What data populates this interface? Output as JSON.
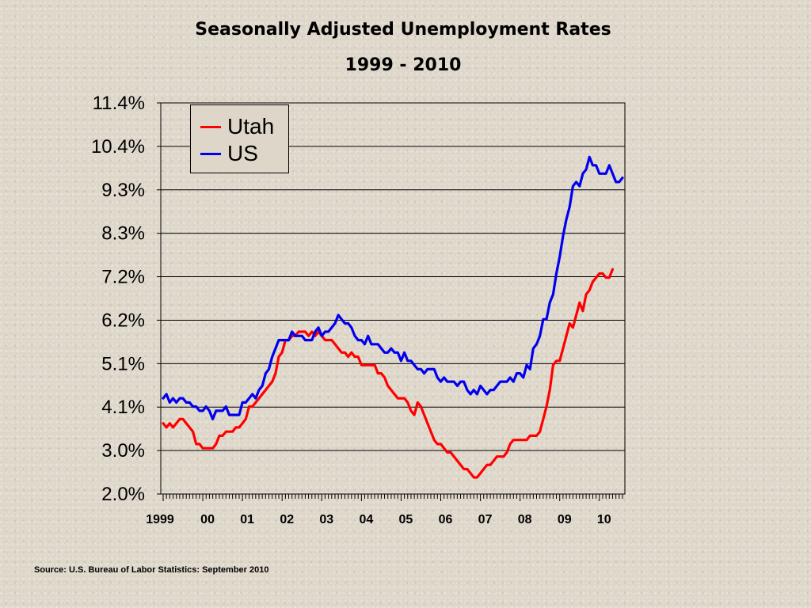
{
  "chart_data": {
    "type": "line",
    "title": "Seasonally Adjusted Unemployment Rates",
    "subtitle": "1999 - 2010",
    "y_ticks": [
      "2.0%",
      "3.0%",
      "4.1%",
      "5.1%",
      "6.2%",
      "7.2%",
      "8.3%",
      "9.3%",
      "10.4%",
      "11.4%"
    ],
    "ylim": [
      2.0,
      11.4
    ],
    "x_tick_labels": [
      "1999",
      "00",
      "01",
      "02",
      "03",
      "04",
      "05",
      "06",
      "07",
      "08",
      "09",
      "10"
    ],
    "x_start": "1999-01",
    "grid": true,
    "legend_position": "top-left",
    "series": [
      {
        "name": "Utah",
        "color": "#ff0000",
        "points": [
          [
            0,
            3.7
          ],
          [
            1,
            3.6
          ],
          [
            2,
            3.7
          ],
          [
            3,
            3.6
          ],
          [
            4,
            3.7
          ],
          [
            5,
            3.8
          ],
          [
            6,
            3.8
          ],
          [
            7,
            3.7
          ],
          [
            8,
            3.6
          ],
          [
            9,
            3.5
          ],
          [
            10,
            3.2
          ],
          [
            11,
            3.2
          ],
          [
            12,
            3.1
          ],
          [
            13,
            3.1
          ],
          [
            14,
            3.1
          ],
          [
            15,
            3.1
          ],
          [
            16,
            3.2
          ],
          [
            17,
            3.4
          ],
          [
            18,
            3.4
          ],
          [
            19,
            3.5
          ],
          [
            20,
            3.5
          ],
          [
            21,
            3.5
          ],
          [
            22,
            3.6
          ],
          [
            23,
            3.6
          ],
          [
            24,
            3.7
          ],
          [
            25,
            3.8
          ],
          [
            26,
            4.1
          ],
          [
            27,
            4.1
          ],
          [
            28,
            4.2
          ],
          [
            29,
            4.3
          ],
          [
            30,
            4.4
          ],
          [
            31,
            4.5
          ],
          [
            32,
            4.6
          ],
          [
            33,
            4.7
          ],
          [
            34,
            4.9
          ],
          [
            35,
            5.3
          ],
          [
            36,
            5.4
          ],
          [
            37,
            5.7
          ],
          [
            38,
            5.7
          ],
          [
            39,
            5.8
          ],
          [
            40,
            5.8
          ],
          [
            41,
            5.9
          ],
          [
            42,
            5.9
          ],
          [
            43,
            5.9
          ],
          [
            44,
            5.8
          ],
          [
            45,
            5.9
          ],
          [
            46,
            5.8
          ],
          [
            47,
            5.9
          ],
          [
            48,
            5.8
          ],
          [
            49,
            5.7
          ],
          [
            50,
            5.7
          ],
          [
            51,
            5.7
          ],
          [
            52,
            5.6
          ],
          [
            53,
            5.5
          ],
          [
            54,
            5.4
          ],
          [
            55,
            5.4
          ],
          [
            56,
            5.3
          ],
          [
            57,
            5.4
          ],
          [
            58,
            5.3
          ],
          [
            59,
            5.3
          ],
          [
            60,
            5.1
          ],
          [
            61,
            5.1
          ],
          [
            62,
            5.1
          ],
          [
            63,
            5.1
          ],
          [
            64,
            5.1
          ],
          [
            65,
            4.9
          ],
          [
            66,
            4.9
          ],
          [
            67,
            4.8
          ],
          [
            68,
            4.6
          ],
          [
            69,
            4.5
          ],
          [
            70,
            4.4
          ],
          [
            71,
            4.3
          ],
          [
            72,
            4.3
          ],
          [
            73,
            4.3
          ],
          [
            74,
            4.2
          ],
          [
            75,
            4.0
          ],
          [
            76,
            3.9
          ],
          [
            77,
            4.2
          ],
          [
            78,
            4.1
          ],
          [
            79,
            3.9
          ],
          [
            80,
            3.7
          ],
          [
            81,
            3.5
          ],
          [
            82,
            3.3
          ],
          [
            83,
            3.2
          ],
          [
            84,
            3.2
          ],
          [
            85,
            3.1
          ],
          [
            86,
            3.0
          ],
          [
            87,
            3.0
          ],
          [
            88,
            2.9
          ],
          [
            89,
            2.8
          ],
          [
            90,
            2.7
          ],
          [
            91,
            2.6
          ],
          [
            92,
            2.6
          ],
          [
            93,
            2.5
          ],
          [
            94,
            2.4
          ],
          [
            95,
            2.4
          ],
          [
            96,
            2.5
          ],
          [
            97,
            2.6
          ],
          [
            98,
            2.7
          ],
          [
            99,
            2.7
          ],
          [
            100,
            2.8
          ],
          [
            101,
            2.9
          ],
          [
            102,
            2.9
          ],
          [
            103,
            2.9
          ],
          [
            104,
            3.0
          ],
          [
            105,
            3.2
          ],
          [
            106,
            3.3
          ],
          [
            107,
            3.3
          ],
          [
            108,
            3.3
          ],
          [
            109,
            3.3
          ],
          [
            110,
            3.3
          ],
          [
            111,
            3.4
          ],
          [
            112,
            3.4
          ],
          [
            113,
            3.4
          ],
          [
            114,
            3.5
          ],
          [
            115,
            3.8
          ],
          [
            116,
            4.1
          ],
          [
            117,
            4.5
          ],
          [
            118,
            5.1
          ],
          [
            119,
            5.2
          ],
          [
            120,
            5.2
          ],
          [
            121,
            5.5
          ],
          [
            122,
            5.8
          ],
          [
            123,
            6.1
          ],
          [
            124,
            6.0
          ],
          [
            125,
            6.3
          ],
          [
            126,
            6.6
          ],
          [
            127,
            6.4
          ],
          [
            128,
            6.8
          ],
          [
            129,
            6.9
          ],
          [
            130,
            7.1
          ],
          [
            131,
            7.2
          ],
          [
            132,
            7.3
          ],
          [
            133,
            7.3
          ],
          [
            134,
            7.2
          ],
          [
            135,
            7.2
          ],
          [
            136,
            7.4
          ]
        ]
      },
      {
        "name": "US",
        "color": "#0000ee",
        "points": [
          [
            0,
            4.3
          ],
          [
            1,
            4.4
          ],
          [
            2,
            4.2
          ],
          [
            3,
            4.3
          ],
          [
            4,
            4.2
          ],
          [
            5,
            4.3
          ],
          [
            6,
            4.3
          ],
          [
            7,
            4.2
          ],
          [
            8,
            4.2
          ],
          [
            9,
            4.1
          ],
          [
            10,
            4.1
          ],
          [
            11,
            4.0
          ],
          [
            12,
            4.0
          ],
          [
            13,
            4.1
          ],
          [
            14,
            4.0
          ],
          [
            15,
            3.8
          ],
          [
            16,
            4.0
          ],
          [
            17,
            4.0
          ],
          [
            18,
            4.0
          ],
          [
            19,
            4.1
          ],
          [
            20,
            3.9
          ],
          [
            21,
            3.9
          ],
          [
            22,
            3.9
          ],
          [
            23,
            3.9
          ],
          [
            24,
            4.2
          ],
          [
            25,
            4.2
          ],
          [
            26,
            4.3
          ],
          [
            27,
            4.4
          ],
          [
            28,
            4.3
          ],
          [
            29,
            4.5
          ],
          [
            30,
            4.6
          ],
          [
            31,
            4.9
          ],
          [
            32,
            5.0
          ],
          [
            33,
            5.3
          ],
          [
            34,
            5.5
          ],
          [
            35,
            5.7
          ],
          [
            36,
            5.7
          ],
          [
            37,
            5.7
          ],
          [
            38,
            5.7
          ],
          [
            39,
            5.9
          ],
          [
            40,
            5.8
          ],
          [
            41,
            5.8
          ],
          [
            42,
            5.8
          ],
          [
            43,
            5.7
          ],
          [
            44,
            5.7
          ],
          [
            45,
            5.7
          ],
          [
            46,
            5.9
          ],
          [
            47,
            6.0
          ],
          [
            48,
            5.8
          ],
          [
            49,
            5.9
          ],
          [
            50,
            5.9
          ],
          [
            51,
            6.0
          ],
          [
            52,
            6.1
          ],
          [
            53,
            6.3
          ],
          [
            54,
            6.2
          ],
          [
            55,
            6.1
          ],
          [
            56,
            6.1
          ],
          [
            57,
            6.0
          ],
          [
            58,
            5.8
          ],
          [
            59,
            5.7
          ],
          [
            60,
            5.7
          ],
          [
            61,
            5.6
          ],
          [
            62,
            5.8
          ],
          [
            63,
            5.6
          ],
          [
            64,
            5.6
          ],
          [
            65,
            5.6
          ],
          [
            66,
            5.5
          ],
          [
            67,
            5.4
          ],
          [
            68,
            5.4
          ],
          [
            69,
            5.5
          ],
          [
            70,
            5.4
          ],
          [
            71,
            5.4
          ],
          [
            72,
            5.2
          ],
          [
            73,
            5.4
          ],
          [
            74,
            5.2
          ],
          [
            75,
            5.2
          ],
          [
            76,
            5.1
          ],
          [
            77,
            5.0
          ],
          [
            78,
            5.0
          ],
          [
            79,
            4.9
          ],
          [
            80,
            5.0
          ],
          [
            81,
            5.0
          ],
          [
            82,
            5.0
          ],
          [
            83,
            4.8
          ],
          [
            84,
            4.7
          ],
          [
            85,
            4.8
          ],
          [
            86,
            4.7
          ],
          [
            87,
            4.7
          ],
          [
            88,
            4.7
          ],
          [
            89,
            4.6
          ],
          [
            90,
            4.7
          ],
          [
            91,
            4.7
          ],
          [
            92,
            4.5
          ],
          [
            93,
            4.4
          ],
          [
            94,
            4.5
          ],
          [
            95,
            4.4
          ],
          [
            96,
            4.6
          ],
          [
            97,
            4.5
          ],
          [
            98,
            4.4
          ],
          [
            99,
            4.5
          ],
          [
            100,
            4.5
          ],
          [
            101,
            4.6
          ],
          [
            102,
            4.7
          ],
          [
            103,
            4.7
          ],
          [
            104,
            4.7
          ],
          [
            105,
            4.8
          ],
          [
            106,
            4.7
          ],
          [
            107,
            4.9
          ],
          [
            108,
            4.9
          ],
          [
            109,
            4.8
          ],
          [
            110,
            5.1
          ],
          [
            111,
            5.0
          ],
          [
            112,
            5.5
          ],
          [
            113,
            5.6
          ],
          [
            114,
            5.8
          ],
          [
            115,
            6.2
          ],
          [
            116,
            6.2
          ],
          [
            117,
            6.6
          ],
          [
            118,
            6.8
          ],
          [
            119,
            7.3
          ],
          [
            120,
            7.7
          ],
          [
            121,
            8.2
          ],
          [
            122,
            8.6
          ],
          [
            123,
            8.9
          ],
          [
            124,
            9.4
          ],
          [
            125,
            9.5
          ],
          [
            126,
            9.4
          ],
          [
            127,
            9.7
          ],
          [
            128,
            9.8
          ],
          [
            129,
            10.1
          ],
          [
            130,
            9.9
          ],
          [
            131,
            9.9
          ],
          [
            132,
            9.7
          ],
          [
            133,
            9.7
          ],
          [
            134,
            9.7
          ],
          [
            135,
            9.9
          ],
          [
            136,
            9.7
          ],
          [
            137,
            9.5
          ],
          [
            138,
            9.5
          ],
          [
            139,
            9.6
          ]
        ]
      }
    ]
  },
  "source": "Source: U.S. Bureau of Labor Statistics: September 2010"
}
